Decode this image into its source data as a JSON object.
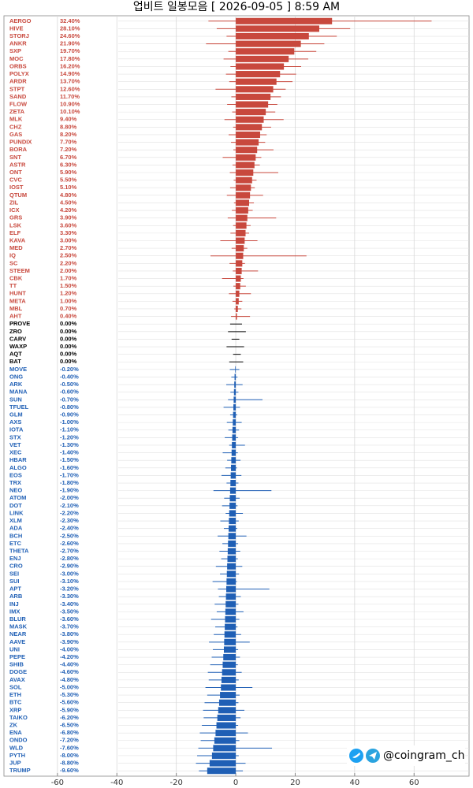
{
  "chart_data": {
    "type": "candle-bar",
    "title": "업비트 일봉모음 [ 2026-09-05 ]  8:59 AM",
    "watermark": "@coingram_ch",
    "xlim": [
      -78,
      78.5
    ],
    "xticks": [
      -60,
      -40,
      -20,
      0,
      20,
      40,
      60
    ],
    "grid": true,
    "up_color": "#c8483d",
    "flat_color": "#000000",
    "down_color": "#1f5fb5",
    "categories": [
      "AERGO",
      "HIVE",
      "STORJ",
      "ANKR",
      "SXP",
      "MOC",
      "ORBS",
      "POLYX",
      "ARDR",
      "STPT",
      "SAND",
      "FLOW",
      "ZETA",
      "MLK",
      "CHZ",
      "GAS",
      "PUNDIX",
      "BORA",
      "SNT",
      "ASTR",
      "ONT",
      "CVC",
      "IOST",
      "QTUM",
      "ZIL",
      "ICX",
      "GRS",
      "LSK",
      "ELF",
      "KAVA",
      "MED",
      "IQ",
      "SC",
      "STEEM",
      "CBK",
      "TT",
      "HUNT",
      "META",
      "MBL",
      "AHT",
      "PROVE",
      "ZRO",
      "CARV",
      "WAXP",
      "AQT",
      "BAT",
      "MOVE",
      "ONG",
      "ARK",
      "MANA",
      "SUN",
      "TFUEL",
      "GLM",
      "AXS",
      "IOTA",
      "STX",
      "VET",
      "XEC",
      "HBAR",
      "ALGO",
      "EOS",
      "TRX",
      "NEO",
      "ATOM",
      "DOT",
      "LINK",
      "XLM",
      "ADA",
      "BCH",
      "ETC",
      "THETA",
      "ENJ",
      "CRO",
      "SEI",
      "SUI",
      "APT",
      "ARB",
      "INJ",
      "IMX",
      "BLUR",
      "MASK",
      "NEAR",
      "AAVE",
      "UNI",
      "PEPE",
      "SHIB",
      "DOGE",
      "AVAX",
      "SOL",
      "ETH",
      "BTC",
      "XRP",
      "TAIKO",
      "ZK",
      "ENA",
      "ONDO",
      "WLD",
      "PYTH",
      "JUP",
      "TRUMP"
    ],
    "series": [
      {
        "name": "change",
        "values": [
          32.4,
          28.1,
          24.6,
          21.9,
          19.7,
          17.8,
          16.2,
          14.9,
          13.7,
          12.6,
          11.7,
          10.9,
          10.1,
          9.4,
          8.8,
          8.2,
          7.7,
          7.2,
          6.7,
          6.3,
          5.9,
          5.5,
          5.1,
          4.8,
          4.5,
          4.2,
          3.9,
          3.6,
          3.3,
          3.0,
          2.7,
          2.5,
          2.2,
          2.0,
          1.7,
          1.5,
          1.2,
          1.0,
          0.7,
          0.4,
          0,
          0,
          0,
          0,
          0,
          0,
          -0.2,
          -0.4,
          -0.5,
          -0.6,
          -0.7,
          -0.8,
          -0.9,
          -1.0,
          -1.1,
          -1.2,
          -1.3,
          -1.4,
          -1.5,
          -1.6,
          -1.7,
          -1.8,
          -1.9,
          -2.0,
          -2.1,
          -2.2,
          -2.3,
          -2.4,
          -2.5,
          -2.6,
          -2.7,
          -2.8,
          -2.9,
          -3.0,
          -3.1,
          -3.2,
          -3.3,
          -3.4,
          -3.5,
          -3.6,
          -3.7,
          -3.8,
          -3.9,
          -4.0,
          -4.2,
          -4.4,
          -4.6,
          -4.8,
          -5.0,
          -5.3,
          -5.6,
          -5.9,
          -6.2,
          -6.5,
          -6.8,
          -7.2,
          -7.6,
          -8.0,
          -8.8,
          -9.6
        ],
        "value_labels": [
          "32.40%",
          "28.10%",
          "24.60%",
          "21.90%",
          "19.70%",
          "17.80%",
          "16.20%",
          "14.90%",
          "13.70%",
          "12.60%",
          "11.70%",
          "10.90%",
          "10.10%",
          "9.40%",
          "8.80%",
          "8.20%",
          "7.70%",
          "7.20%",
          "6.70%",
          "6.30%",
          "5.90%",
          "5.50%",
          "5.10%",
          "4.80%",
          "4.50%",
          "4.20%",
          "3.90%",
          "3.60%",
          "3.30%",
          "3.00%",
          "2.70%",
          "2.50%",
          "2.20%",
          "2.00%",
          "1.70%",
          "1.50%",
          "1.20%",
          "1.00%",
          "0.70%",
          "0.40%",
          "0.00%",
          "0.00%",
          "0.00%",
          "0.00%",
          "0.00%",
          "0.00%",
          "-0.20%",
          "-0.40%",
          "-0.50%",
          "-0.60%",
          "-0.70%",
          "-0.80%",
          "-0.90%",
          "-1.00%",
          "-1.10%",
          "-1.20%",
          "-1.30%",
          "-1.40%",
          "-1.50%",
          "-1.60%",
          "-1.70%",
          "-1.80%",
          "-1.90%",
          "-2.00%",
          "-2.10%",
          "-2.20%",
          "-2.30%",
          "-2.40%",
          "-2.50%",
          "-2.60%",
          "-2.70%",
          "-2.80%",
          "-2.90%",
          "-3.00%",
          "-3.10%",
          "-3.20%",
          "-3.30%",
          "-3.40%",
          "-3.50%",
          "-3.60%",
          "-3.70%",
          "-3.80%",
          "-3.90%",
          "-4.00%",
          "-4.20%",
          "-4.40%",
          "-4.60%",
          "-4.80%",
          "-5.00%",
          "-5.30%",
          "-5.60%",
          "-5.90%",
          "-6.20%",
          "-6.50%",
          "-6.80%",
          "-7.20%",
          "-7.60%",
          "-8.00%",
          "-8.80%",
          "-9.60%"
        ]
      },
      {
        "name": "high",
        "values": [
          65.9,
          38.5,
          34.0,
          29.8,
          27.1,
          24.4,
          22.0,
          20.3,
          19.1,
          16.8,
          15.2,
          14.0,
          13.3,
          16.1,
          11.9,
          10.4,
          9.9,
          12.7,
          8.6,
          8.1,
          14.3,
          7.0,
          6.4,
          9.2,
          6.1,
          5.7,
          13.6,
          5.0,
          4.5,
          7.3,
          3.9,
          23.8,
          3.1,
          7.5,
          2.6,
          3.4,
          5.1,
          2.2,
          1.9,
          4.8,
          2.1,
          3.4,
          1.2,
          2.8,
          1.7,
          2.5,
          1.2,
          0.6,
          2.3,
          0.9,
          9.0,
          1.4,
          0.5,
          2.0,
          1.1,
          0.8,
          3.1,
          0.7,
          1.6,
          0.4,
          1.9,
          0.9,
          12.0,
          1.3,
          0.6,
          2.4,
          1.0,
          0.5,
          3.6,
          0.8,
          1.5,
          0.7,
          2.2,
          1.1,
          0.4,
          11.3,
          1.7,
          0.9,
          2.6,
          1.2,
          0.6,
          1.8,
          4.7,
          0.8,
          1.4,
          0.7,
          2.0,
          1.0,
          5.6,
          1.3,
          0.9,
          2.9,
          1.6,
          0.8,
          4.1,
          1.2,
          12.2,
          1.0,
          3.3,
          2.4
        ]
      },
      {
        "name": "low",
        "values": [
          -9.2,
          -6.4,
          -3.1,
          -10.0,
          -2.5,
          -4.1,
          -1.8,
          -3.3,
          -2.2,
          -6.8,
          -1.5,
          -2.9,
          -1.2,
          -3.8,
          -0.9,
          -2.4,
          -1.6,
          -0.8,
          -4.4,
          -1.1,
          -2.0,
          -0.7,
          -1.9,
          -3.0,
          -0.6,
          -1.3,
          -2.7,
          -0.9,
          -1.8,
          -5.2,
          -1.4,
          -8.5,
          -2.1,
          -1.0,
          -4.6,
          -0.8,
          -2.3,
          -1.1,
          -0.5,
          -1.6,
          -1.9,
          -2.6,
          -1.4,
          -3.1,
          -0.9,
          -2.2,
          -2.0,
          -1.5,
          -3.2,
          -1.8,
          -2.6,
          -4.1,
          -1.9,
          -3.0,
          -2.5,
          -3.7,
          -2.2,
          -4.4,
          -2.9,
          -3.5,
          -4.8,
          -3.1,
          -7.5,
          -3.9,
          -4.6,
          -3.4,
          -5.2,
          -4.0,
          -6.1,
          -4.5,
          -5.5,
          -4.9,
          -6.7,
          -5.3,
          -7.8,
          -6.0,
          -5.7,
          -7.1,
          -6.4,
          -8.3,
          -6.9,
          -7.4,
          -9.0,
          -7.7,
          -8.1,
          -8.6,
          -9.4,
          -9.1,
          -10.2,
          -9.6,
          -10.5,
          -11.0,
          -10.8,
          -11.4,
          -12.1,
          -11.8,
          -12.6,
          -13.0,
          -13.4,
          -12.4
        ]
      }
    ]
  }
}
